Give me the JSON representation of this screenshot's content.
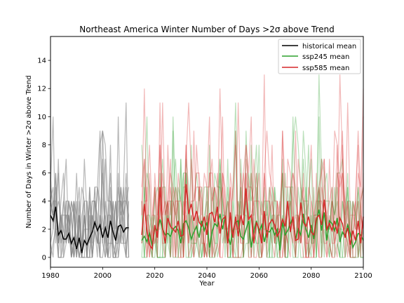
{
  "chart_data": {
    "type": "line",
    "title": "Northeast America Winter Number of Days >2σ above Trend",
    "xlabel": "Year",
    "ylabel": "Number of Days in Winter >2σ above Trend",
    "xlim": [
      1980,
      2100
    ],
    "ylim": [
      -0.7,
      15.7
    ],
    "xticks": [
      1980,
      2000,
      2020,
      2040,
      2060,
      2080,
      2100
    ],
    "yticks": [
      0,
      2,
      4,
      6,
      8,
      10,
      12,
      14
    ],
    "grid": false,
    "legend": {
      "placement": "top-right",
      "entries": [
        "historical mean",
        "ssp245 mean",
        "ssp585 mean"
      ]
    },
    "colors": {
      "historical": "#000000",
      "historical_members": "#808080",
      "ssp245": "#2ca02c",
      "ssp585": "#d62728"
    },
    "series": [
      {
        "name": "historical mean",
        "x": [
          1980,
          1981,
          1982,
          1983,
          1984,
          1985,
          1986,
          1987,
          1988,
          1989,
          1990,
          1991,
          1992,
          1993,
          1994,
          1995,
          1996,
          1997,
          1998,
          1999,
          2000,
          2001,
          2002,
          2003,
          2004,
          2005,
          2006,
          2007,
          2008,
          2009,
          2010
        ],
        "values": [
          3.0,
          2.6,
          3.6,
          1.6,
          1.9,
          1.3,
          1.3,
          1.7,
          1.0,
          1.4,
          0.6,
          1.4,
          0.3,
          1.2,
          0.9,
          1.4,
          1.8,
          2.5,
          1.9,
          2.3,
          1.4,
          2.1,
          1.4,
          2.6,
          1.8,
          1.2,
          2.2,
          2.3,
          1.8,
          2.1,
          2.1
        ]
      },
      {
        "name": "ssp245 mean",
        "x": [
          2015,
          2016,
          2017,
          2018,
          2019,
          2020,
          2021,
          2022,
          2023,
          2024,
          2025,
          2026,
          2027,
          2028,
          2029,
          2030,
          2031,
          2032,
          2033,
          2034,
          2035,
          2036,
          2037,
          2038,
          2039,
          2040,
          2041,
          2042,
          2043,
          2044,
          2045,
          2046,
          2047,
          2048,
          2049,
          2050,
          2051,
          2052,
          2053,
          2054,
          2055,
          2056,
          2057,
          2058,
          2059,
          2060,
          2061,
          2062,
          2063,
          2064,
          2065,
          2066,
          2067,
          2068,
          2069,
          2070,
          2071,
          2072,
          2073,
          2074,
          2075,
          2076,
          2077,
          2078,
          2079,
          2080,
          2081,
          2082,
          2083,
          2084,
          2085,
          2086,
          2087,
          2088,
          2089,
          2090,
          2091,
          2092,
          2093,
          2094,
          2095,
          2096,
          2097,
          2098,
          2099,
          2100
        ],
        "values": [
          1.2,
          1.5,
          1.1,
          1.7,
          0.8,
          2.1,
          1.9,
          2.7,
          2.0,
          1.6,
          1.7,
          1.5,
          2.0,
          2.2,
          1.9,
          1.0,
          2.4,
          2.6,
          2.1,
          1.3,
          1.8,
          2.2,
          1.4,
          2.6,
          1.9,
          2.5,
          0.7,
          1.8,
          2.4,
          2.2,
          3.1,
          2.0,
          2.9,
          1.5,
          0.9,
          1.9,
          2.5,
          2.6,
          1.5,
          1.3,
          2.0,
          2.6,
          0.7,
          1.9,
          2.6,
          1.8,
          2.3,
          1.1,
          1.9,
          1.8,
          2.1,
          1.6,
          2.0,
          0.5,
          2.5,
          1.6,
          1.9,
          2.4,
          2.8,
          1.3,
          2.0,
          1.6,
          3.1,
          2.0,
          1.4,
          2.3,
          1.3,
          2.6,
          3.4,
          1.9,
          3.2,
          1.2,
          2.6,
          2.4,
          1.9,
          2.8,
          1.1,
          1.8,
          1.5,
          2.3,
          1.7,
          0.7,
          1.1,
          1.7,
          1.6,
          1.2
        ]
      },
      {
        "name": "ssp585 mean",
        "x": [
          2015,
          2016,
          2017,
          2018,
          2019,
          2020,
          2021,
          2022,
          2023,
          2024,
          2025,
          2026,
          2027,
          2028,
          2029,
          2030,
          2031,
          2032,
          2033,
          2034,
          2035,
          2036,
          2037,
          2038,
          2039,
          2040,
          2041,
          2042,
          2043,
          2044,
          2045,
          2046,
          2047,
          2048,
          2049,
          2050,
          2051,
          2052,
          2053,
          2054,
          2055,
          2056,
          2057,
          2058,
          2059,
          2060,
          2061,
          2062,
          2063,
          2064,
          2065,
          2066,
          2067,
          2068,
          2069,
          2070,
          2071,
          2072,
          2073,
          2074,
          2075,
          2076,
          2077,
          2078,
          2079,
          2080,
          2081,
          2082,
          2083,
          2084,
          2085,
          2086,
          2087,
          2088,
          2089,
          2090,
          2091,
          2092,
          2093,
          2094,
          2095,
          2096,
          2097,
          2098,
          2099,
          2100
        ],
        "values": [
          1.6,
          3.8,
          1.9,
          0.9,
          0.6,
          2.3,
          1.4,
          5.0,
          2.1,
          1.0,
          2.8,
          2.2,
          2.0,
          1.8,
          2.6,
          1.5,
          1.6,
          5.2,
          3.1,
          3.8,
          2.6,
          3.3,
          2.5,
          2.2,
          2.9,
          1.6,
          3.1,
          3.2,
          2.5,
          3.6,
          1.7,
          2.7,
          2.9,
          1.0,
          3.2,
          1.4,
          2.9,
          1.5,
          3.0,
          2.3,
          4.9,
          2.7,
          3.0,
          1.0,
          2.5,
          2.0,
          1.0,
          3.3,
          1.4,
          2.4,
          2.7,
          2.3,
          1.5,
          1.9,
          2.7,
          2.2,
          4.0,
          1.8,
          2.9,
          1.2,
          1.3,
          3.9,
          2.5,
          2.2,
          2.9,
          1.8,
          1.6,
          2.8,
          3.0,
          2.3,
          4.1,
          2.0,
          2.4,
          1.9,
          2.6,
          1.7,
          2.8,
          2.4,
          1.4,
          2.1,
          0.9,
          1.9,
          1.2,
          2.6,
          1.0,
          2.9
        ]
      }
    ]
  }
}
